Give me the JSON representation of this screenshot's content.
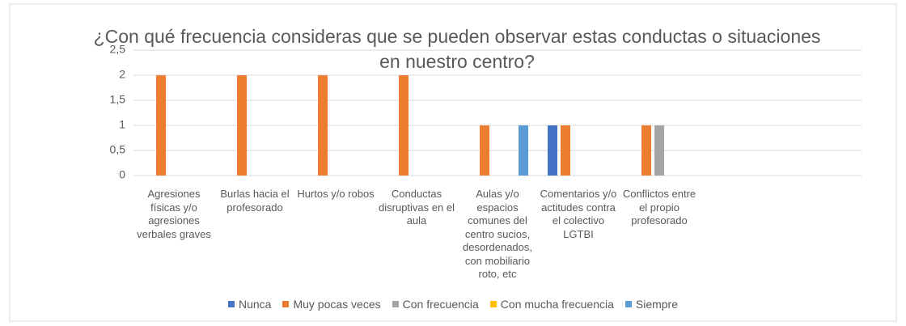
{
  "chart_data": {
    "type": "bar",
    "title": "¿Con qué frecuencia consideras que se pueden observar estas conductas o situaciones en nuestro centro?",
    "categories": [
      "Agresiones físicas y/o agresiones verbales graves",
      "Burlas hacia el profesorado",
      "Hurtos y/o robos",
      "Conductas disruptivas en el aula",
      "Aulas y/o espacios comunes del centro sucios, desordenados, con mobiliario roto, etc",
      "Comentarios y/o actitudes contra el colectivo LGTBI",
      "Conflictos entre el propio profesorado",
      null,
      null
    ],
    "series": [
      {
        "name": "Nunca",
        "color": "#4472c4",
        "values": [
          0,
          0,
          0,
          0,
          0,
          1,
          0,
          null,
          null
        ]
      },
      {
        "name": "Muy pocas veces",
        "color": "#ed7d31",
        "values": [
          2,
          2,
          2,
          2,
          1,
          1,
          1,
          null,
          null
        ]
      },
      {
        "name": "Con frecuencia",
        "color": "#a5a5a5",
        "values": [
          0,
          0,
          0,
          0,
          0,
          0,
          1,
          null,
          null
        ]
      },
      {
        "name": "Con mucha frecuencia",
        "color": "#ffc000",
        "values": [
          0,
          0,
          0,
          0,
          0,
          0,
          0,
          null,
          null
        ]
      },
      {
        "name": "Siempre",
        "color": "#5b9bd5",
        "values": [
          0,
          0,
          0,
          0,
          1,
          0,
          0,
          null,
          null
        ]
      }
    ],
    "ylim": [
      0,
      2.5
    ],
    "yticks": [
      0,
      {
        "value": 0.5,
        "label": "0,5"
      },
      1,
      {
        "value": 1.5,
        "label": "1,5"
      },
      2,
      {
        "value": 2.5,
        "label": "2,5"
      }
    ],
    "grid": true,
    "legend": "bottom"
  }
}
